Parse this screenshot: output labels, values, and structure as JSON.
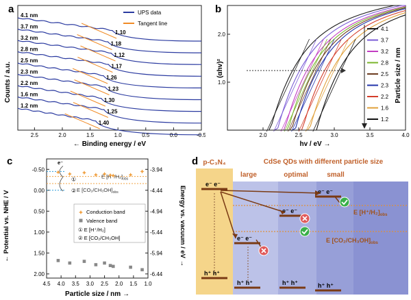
{
  "panel_a": {
    "letter": "a",
    "xlabel": "← Binding energy / eV",
    "ylabel": "Counts / a.u.",
    "xticks": [
      "2.5",
      "2.0",
      "1.5",
      "1.0",
      "0.5",
      "0.0",
      "-0.5"
    ],
    "legend": [
      {
        "name": "UPS data",
        "color": "#2a3aa0"
      },
      {
        "name": "Tangent line",
        "color": "#f08a24"
      }
    ],
    "sizes": [
      "4.1 nm",
      "3.7 nm",
      "3.2 nm",
      "2.8 nm",
      "2.5 nm",
      "2.3 nm",
      "2.2 nm",
      "1.6 nm",
      "1.2 nm"
    ],
    "onsets": [
      "1.10",
      "1.18",
      "1.12",
      "1.17",
      "1.26",
      "1.23",
      "1.30",
      "1.25",
      "1.40"
    ]
  },
  "panel_b": {
    "letter": "b",
    "xlabel": "hv / eV →",
    "ylabel": "(αhv)²",
    "xticks": [
      "2.0",
      "2.5",
      "3.0",
      "3.5",
      "4.0"
    ],
    "yticks": [
      "1.0",
      "2.0"
    ],
    "legend_title": "Particle size / nm",
    "sizes": [
      {
        "label": "4.1",
        "color": "#1a1a1a"
      },
      {
        "label": "3.7",
        "color": "#7a5bd6"
      },
      {
        "label": "3.2",
        "color": "#c23cc2"
      },
      {
        "label": "2.8",
        "color": "#7ab52a"
      },
      {
        "label": "2.5",
        "color": "#6b3b1f"
      },
      {
        "label": "2.3",
        "color": "#2233aa"
      },
      {
        "label": "2.2",
        "color": "#d43d2a"
      },
      {
        "label": "1.6",
        "color": "#e0a03a"
      },
      {
        "label": "1.2",
        "color": "#111111"
      }
    ]
  },
  "panel_c": {
    "letter": "c",
    "xlabel": "Particle size / nm →",
    "ylabel_left": "← Potential vs. NHE / V",
    "ylabel_right": "Energy vs. vacuum / eV →",
    "xticks": [
      "4.5",
      "4.0",
      "3.5",
      "3.0",
      "2.5",
      "2.0",
      "1.5",
      "1.0"
    ],
    "yticks_left": [
      "-0.50",
      "0.00",
      "0.50",
      "1.00",
      "1.50",
      "2.00"
    ],
    "yticks_right": [
      "-3.94",
      "-4.44",
      "-4.94",
      "-5.44",
      "-5.94",
      "-6.44"
    ],
    "legend": [
      {
        "name": "Conduction band",
        "color": "#f0a040"
      },
      {
        "name": "Valence band",
        "color": "#888888"
      }
    ],
    "circled": [
      {
        "num": "①",
        "label": "E [H⁺/H₂]"
      },
      {
        "num": "②",
        "label": "E [CO₂/CH₃OH]"
      }
    ],
    "annot_h2": "E [H⁺/H₂]",
    "annot_h2_sub": "obs",
    "annot_co2": "E [CO₂/CH₃OH]",
    "annot_co2_sub": "obs",
    "electron": "e⁻",
    "mark1": "①",
    "mark2": "②"
  },
  "panel_d": {
    "letter": "d",
    "title": "CdSe QDs with different particle size",
    "pc3n4": "p-C₃N₄",
    "large": "large",
    "optimal": "optimal",
    "small": "small",
    "electrons": "e⁻ e⁻",
    "holes": "h⁺ h⁺",
    "h2_label": "E [H⁺/H₂]",
    "h2_sub": "obs",
    "co2_label": "E [CO₂/CH₃OH]",
    "co2_sub": "obs"
  },
  "chart_data": [
    {
      "panel": "c",
      "type": "scatter",
      "xlabel": "Particle size / nm",
      "ylabel": "Potential vs. NHE / V",
      "xlim": [
        4.5,
        1.0
      ],
      "ylim": [
        -0.75,
        2.1
      ],
      "series": [
        {
          "name": "Conduction band",
          "x": [
            4.1,
            3.7,
            3.2,
            2.8,
            2.5,
            2.3,
            2.2,
            1.6,
            1.2
          ],
          "y": [
            -0.43,
            -0.39,
            -0.42,
            -0.37,
            -0.39,
            -0.36,
            -0.35,
            -0.37,
            -0.45
          ]
        },
        {
          "name": "Valence band",
          "x": [
            4.1,
            3.7,
            3.2,
            2.8,
            2.5,
            2.3,
            2.2,
            1.6,
            1.2
          ],
          "y": [
            1.68,
            1.74,
            1.7,
            1.78,
            1.74,
            1.8,
            1.82,
            1.84,
            1.9
          ]
        }
      ],
      "reference_lines": [
        {
          "name": "E [H⁺/H₂]obs",
          "y": -0.33
        },
        {
          "name": "E [CO₂/CH₃OH]obs",
          "y": -0.16
        }
      ]
    },
    {
      "panel": "a",
      "type": "line",
      "xlabel": "Binding energy / eV",
      "ylabel": "Counts / a.u.",
      "series_names": [
        "4.1 nm",
        "3.7 nm",
        "3.2 nm",
        "2.8 nm",
        "2.5 nm",
        "2.3 nm",
        "2.2 nm",
        "1.6 nm",
        "1.2 nm"
      ],
      "onset_values": [
        1.1,
        1.18,
        1.12,
        1.17,
        1.26,
        1.23,
        1.3,
        1.25,
        1.4
      ]
    },
    {
      "panel": "b",
      "type": "line",
      "xlabel": "hv / eV",
      "ylabel": "(αhv)²",
      "xlim": [
        1.5,
        4.0
      ],
      "series_names": [
        "4.1",
        "3.7",
        "3.2",
        "2.8",
        "2.5",
        "2.3",
        "2.2",
        "1.6",
        "1.2"
      ]
    }
  ]
}
